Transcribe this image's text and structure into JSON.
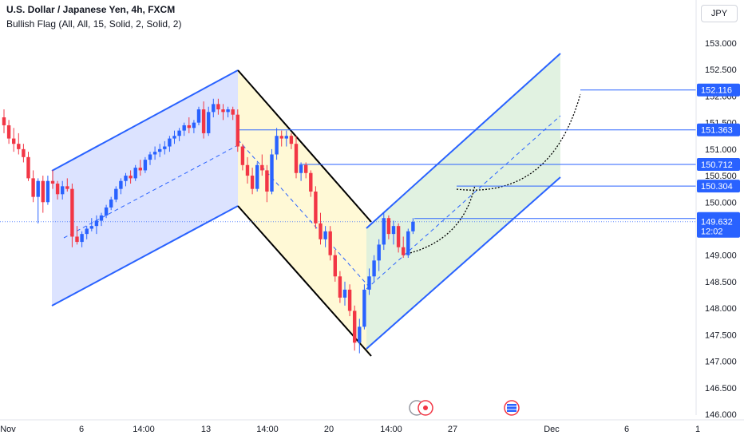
{
  "header": {
    "title": "U.S. Dollar / Japanese Yen, 4h, FXCM",
    "indicator": "Bullish Flag (All, All, 15, Solid, 2, Solid, 2)",
    "currency": "JPY"
  },
  "colors": {
    "up": "#2962ff",
    "down": "#f23645",
    "channel_line": "#2962ff",
    "flag_line": "#000000",
    "pole_fill": "#d6deff",
    "flag_fill": "#fff8d1",
    "target_fill": "#dcf0dc",
    "level_line": "#2962ff"
  },
  "chart_data": {
    "type": "candlestick",
    "symbol": "USDJPY",
    "interval": "4h",
    "y_axis": {
      "min": 146.0,
      "max": 153.0,
      "ticks": [
        146.0,
        146.5,
        147.0,
        147.5,
        148.0,
        148.5,
        149.0,
        149.5,
        150.0,
        150.5,
        151.0,
        151.5,
        152.0,
        152.5,
        153.0
      ],
      "tick_labels": [
        "146.000",
        "146.500",
        "147.000",
        "147.500",
        "148.000",
        "148.500",
        "149.000",
        "149.500",
        "150.000",
        "150.500",
        "151.000",
        "151.500",
        "152.000",
        "152.500",
        "153.000"
      ]
    },
    "x_axis": {
      "labels": [
        "Nov",
        "6",
        "14:00",
        "13",
        "14:00",
        "20",
        "14:00",
        "27",
        "Dec",
        "6",
        "1"
      ]
    },
    "price_labels": [
      {
        "value": "152.116",
        "y": 152.116
      },
      {
        "value": "151.363",
        "y": 151.363
      },
      {
        "value": "150.712",
        "y": 150.712
      },
      {
        "value": "150.304",
        "y": 150.304
      },
      {
        "value": "149.692",
        "y": 149.692
      },
      {
        "value": "149.632",
        "y": 149.632,
        "time": "12:02",
        "current": true
      }
    ],
    "candles": [
      [
        151.6,
        151.75,
        151.3,
        151.45
      ],
      [
        151.45,
        151.55,
        151.1,
        151.2
      ],
      [
        151.2,
        151.4,
        150.95,
        151.1
      ],
      [
        151.1,
        151.3,
        150.9,
        151.0
      ],
      [
        151.0,
        151.1,
        150.75,
        150.85
      ],
      [
        150.85,
        150.95,
        150.4,
        150.45
      ],
      [
        150.45,
        150.6,
        150.0,
        150.1
      ],
      [
        150.1,
        150.45,
        149.6,
        150.4
      ],
      [
        150.4,
        150.5,
        149.8,
        150.0
      ],
      [
        150.0,
        150.5,
        149.95,
        150.4
      ],
      [
        150.4,
        150.6,
        150.25,
        150.35
      ],
      [
        150.35,
        150.4,
        150.05,
        150.15
      ],
      [
        150.15,
        150.4,
        150.05,
        150.3
      ],
      [
        150.3,
        150.45,
        150.2,
        150.25
      ],
      [
        150.25,
        150.35,
        149.15,
        149.35
      ],
      [
        149.35,
        149.55,
        149.2,
        149.25
      ],
      [
        149.25,
        149.45,
        149.15,
        149.4
      ],
      [
        149.4,
        149.55,
        149.3,
        149.5
      ],
      [
        149.5,
        149.7,
        149.45,
        149.55
      ],
      [
        149.55,
        149.75,
        149.4,
        149.65
      ],
      [
        149.65,
        149.8,
        149.55,
        149.75
      ],
      [
        149.75,
        149.95,
        149.7,
        149.9
      ],
      [
        149.9,
        150.1,
        149.85,
        150.05
      ],
      [
        150.05,
        150.3,
        150.0,
        150.25
      ],
      [
        150.25,
        150.45,
        150.15,
        150.4
      ],
      [
        150.4,
        150.55,
        150.3,
        150.5
      ],
      [
        150.5,
        150.6,
        150.35,
        150.45
      ],
      [
        150.45,
        150.7,
        150.4,
        150.65
      ],
      [
        150.65,
        150.8,
        150.5,
        150.6
      ],
      [
        150.6,
        150.85,
        150.55,
        150.8
      ],
      [
        150.8,
        150.95,
        150.7,
        150.9
      ],
      [
        150.9,
        151.05,
        150.8,
        150.95
      ],
      [
        150.95,
        151.1,
        150.85,
        151.0
      ],
      [
        151.0,
        151.15,
        150.9,
        151.05
      ],
      [
        151.05,
        151.25,
        150.95,
        151.2
      ],
      [
        151.2,
        151.35,
        151.1,
        151.25
      ],
      [
        151.25,
        151.4,
        151.15,
        151.35
      ],
      [
        151.35,
        151.5,
        151.25,
        151.45
      ],
      [
        151.45,
        151.6,
        151.3,
        151.4
      ],
      [
        151.4,
        151.55,
        151.3,
        151.5
      ],
      [
        151.5,
        151.8,
        151.45,
        151.75
      ],
      [
        151.75,
        151.9,
        151.2,
        151.3
      ],
      [
        151.3,
        151.8,
        151.25,
        151.7
      ],
      [
        151.7,
        151.95,
        151.6,
        151.85
      ],
      [
        151.85,
        151.95,
        151.65,
        151.75
      ],
      [
        151.75,
        151.85,
        151.55,
        151.7
      ],
      [
        151.7,
        151.8,
        151.6,
        151.75
      ],
      [
        151.75,
        151.8,
        151.55,
        151.65
      ],
      [
        151.65,
        151.75,
        150.95,
        151.05
      ],
      [
        151.05,
        151.1,
        150.6,
        150.7
      ],
      [
        150.7,
        150.85,
        150.35,
        150.5
      ],
      [
        150.5,
        150.65,
        150.15,
        150.25
      ],
      [
        150.25,
        150.75,
        150.2,
        150.7
      ],
      [
        150.7,
        150.9,
        150.5,
        150.6
      ],
      [
        150.6,
        150.7,
        150.0,
        150.2
      ],
      [
        150.2,
        151.0,
        150.15,
        150.9
      ],
      [
        150.9,
        151.4,
        150.8,
        151.25
      ],
      [
        151.25,
        151.35,
        151.05,
        151.2
      ],
      [
        151.2,
        151.35,
        151.05,
        151.25
      ],
      [
        151.25,
        151.3,
        151.0,
        151.1
      ],
      [
        151.1,
        151.25,
        150.45,
        150.55
      ],
      [
        150.55,
        150.75,
        150.4,
        150.7
      ],
      [
        150.7,
        150.75,
        150.45,
        150.55
      ],
      [
        150.55,
        150.6,
        150.1,
        150.2
      ],
      [
        150.2,
        150.3,
        149.5,
        149.6
      ],
      [
        149.6,
        149.8,
        149.2,
        149.3
      ],
      [
        149.3,
        149.55,
        149.15,
        149.45
      ],
      [
        149.45,
        149.55,
        148.9,
        149.0
      ],
      [
        149.0,
        149.1,
        148.5,
        148.6
      ],
      [
        148.6,
        148.7,
        148.1,
        148.2
      ],
      [
        148.2,
        148.5,
        148.05,
        148.35
      ],
      [
        148.35,
        148.45,
        147.85,
        147.95
      ],
      [
        147.95,
        148.05,
        147.2,
        147.35
      ],
      [
        147.35,
        147.8,
        147.15,
        147.65
      ],
      [
        147.65,
        148.45,
        147.6,
        148.35
      ],
      [
        148.35,
        148.75,
        148.25,
        148.6
      ],
      [
        148.6,
        149.0,
        148.5,
        148.9
      ],
      [
        148.9,
        149.3,
        148.7,
        149.2
      ],
      [
        149.2,
        149.8,
        149.1,
        149.7
      ],
      [
        149.7,
        149.75,
        149.3,
        149.4
      ],
      [
        149.4,
        149.65,
        149.2,
        149.55
      ],
      [
        149.55,
        149.6,
        149.05,
        149.15
      ],
      [
        149.15,
        149.35,
        148.95,
        149.0
      ],
      [
        149.0,
        149.5,
        148.95,
        149.45
      ],
      [
        149.45,
        149.7,
        149.4,
        149.63
      ]
    ]
  }
}
